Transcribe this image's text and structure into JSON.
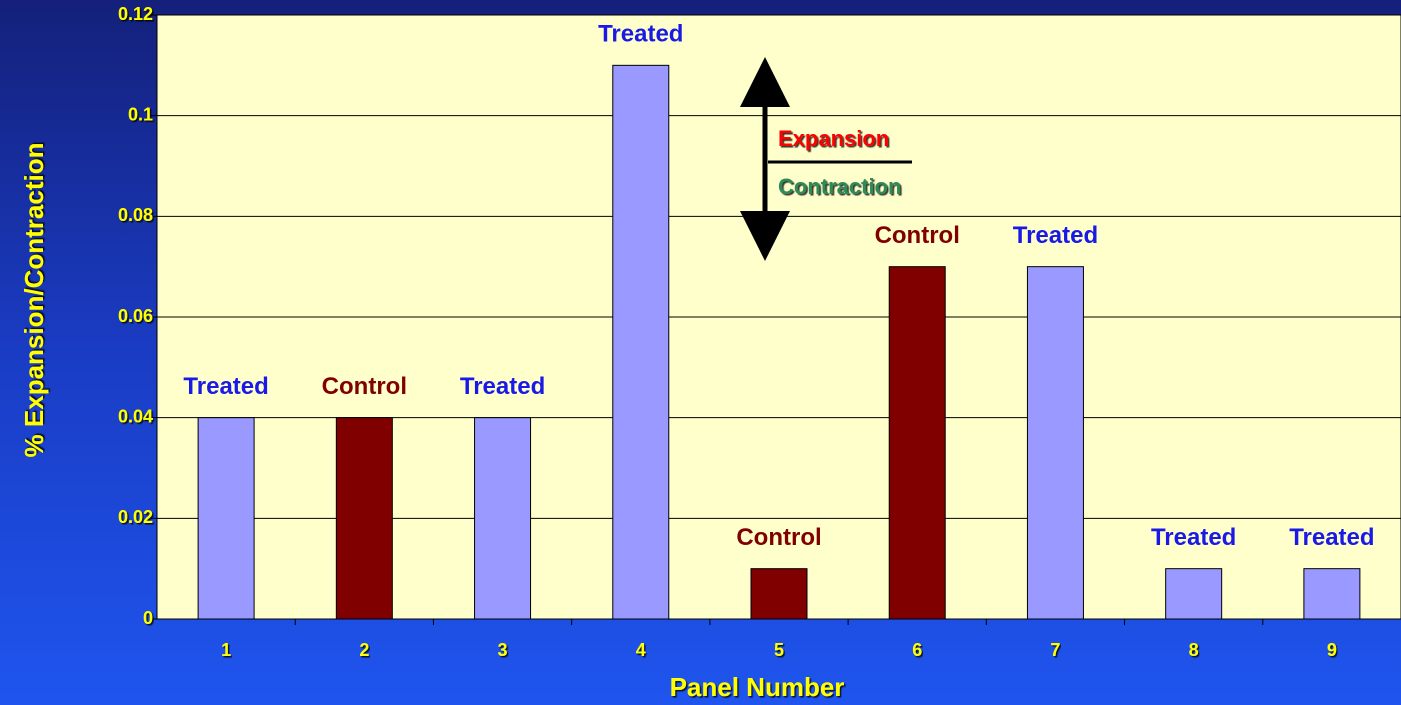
{
  "chart_data": {
    "type": "bar",
    "x_label": "Panel Number",
    "y_label": "% Expansion/Contraction",
    "categories": [
      "1",
      "2",
      "3",
      "4",
      "5",
      "6",
      "7",
      "8",
      "9"
    ],
    "values": [
      0.04,
      0.04,
      0.04,
      0.11,
      0.01,
      0.07,
      0.07,
      0.01,
      0.01
    ],
    "colors": [
      "#9999ff",
      "#800000",
      "#9999ff",
      "#9999ff",
      "#800000",
      "#800000",
      "#9999ff",
      "#9999ff",
      "#9999ff"
    ],
    "bar_labels": [
      "Treated",
      "Control",
      "Treated",
      "Treated",
      "Control",
      "Control",
      "Treated",
      "Treated",
      "Treated"
    ],
    "annotations": [
      "Expansion",
      "Contraction"
    ],
    "ylim": [
      0,
      0.12
    ],
    "yticks": [
      0,
      0.02,
      0.04,
      0.06,
      0.08,
      0.1,
      0.12
    ],
    "grid": true
  }
}
